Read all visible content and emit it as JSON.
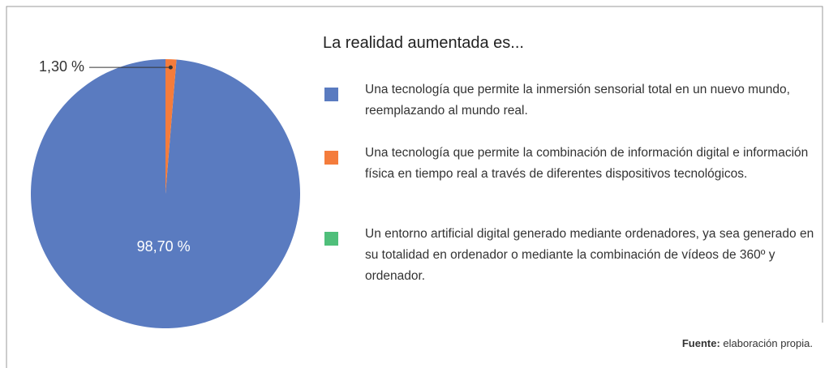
{
  "chart_data": {
    "type": "pie",
    "title": "La realidad aumentada es...",
    "series": [
      {
        "name": "Una tecnología que permite la inmersión sensorial total en un nuevo mundo, reemplazando al mundo real.",
        "color": "#5a7bc0",
        "values": [
          98.7
        ],
        "value_labels": [
          "98,70 %"
        ]
      },
      {
        "name": "Una tecnología que permite la combinación de información digital e información física en tiempo real a través de diferentes dispositivos tecnológicos.",
        "color": "#f47c3c",
        "values": [
          1.3
        ],
        "value_labels": [
          "1,30 %"
        ]
      },
      {
        "name": "Un entorno artificial digital generado mediante ordenadores, ya sea generado en su totalidad  en ordenador o mediante la combinación de vídeos de 360º y ordenador.",
        "color": "#4fbf7a",
        "values": [
          0
        ],
        "value_labels": [
          null
        ]
      }
    ],
    "source": {
      "label": "Fuente:",
      "text": "elaboración propia."
    }
  }
}
